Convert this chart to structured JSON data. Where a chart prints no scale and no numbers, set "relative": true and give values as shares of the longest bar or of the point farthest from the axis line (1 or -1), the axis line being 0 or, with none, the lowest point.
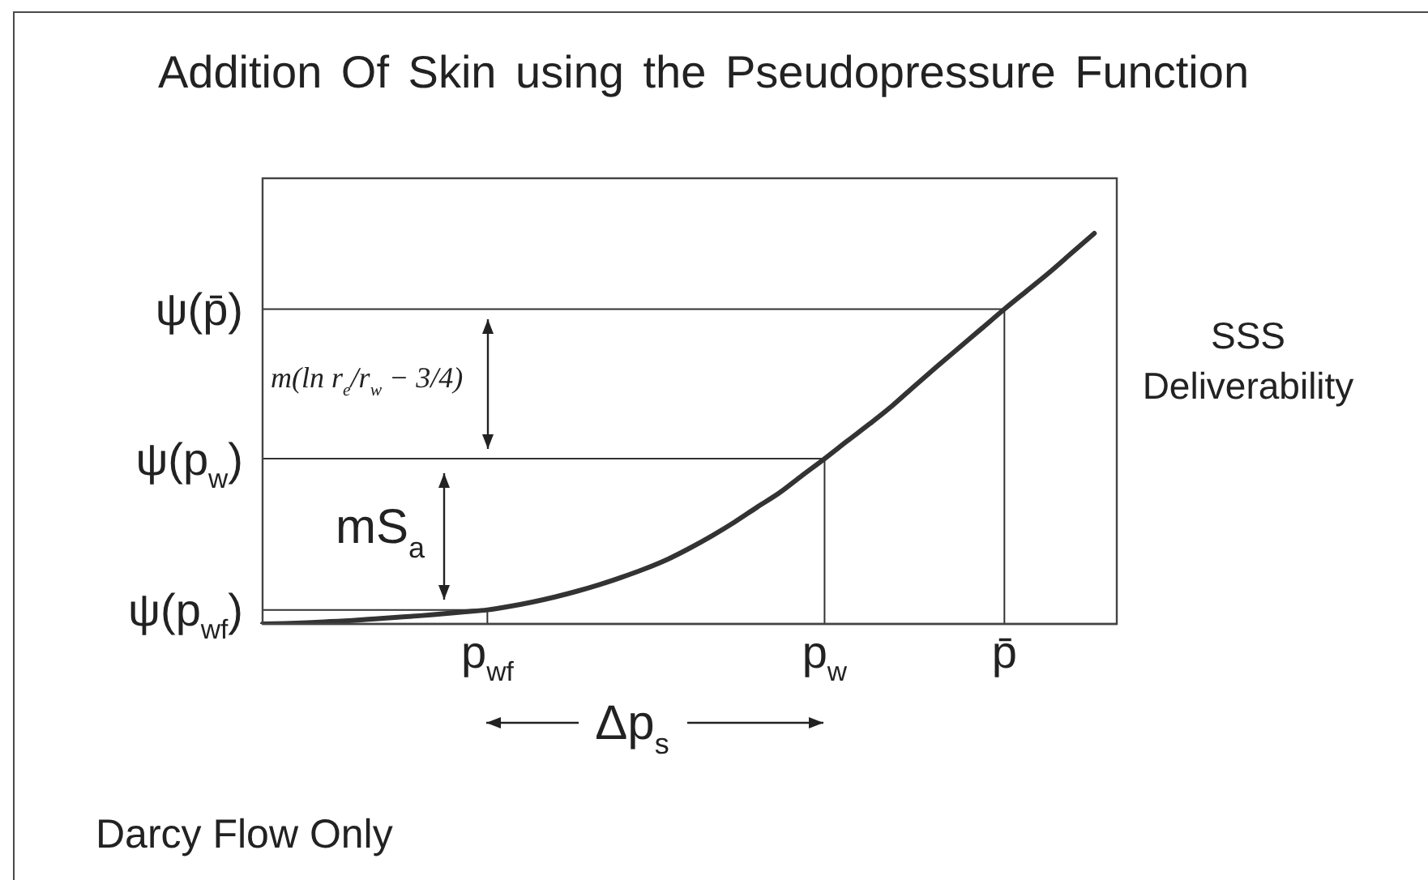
{
  "chart_data": {
    "type": "line",
    "title": "Addition Of Skin using the Pseudopressure Function",
    "relative": true,
    "marker": "none",
    "categories": [
      null,
      null,
      null,
      null,
      null,
      null,
      null,
      null,
      null,
      null,
      "p$_{wf}$",
      null,
      null,
      null,
      null,
      null,
      null,
      null,
      null,
      null,
      null,
      null,
      null,
      null,
      null,
      "p$_{w}$",
      null,
      null,
      null,
      null,
      null,
      null,
      null,
      "p̄",
      null,
      null,
      null,
      null,
      null
    ],
    "series": [
      {
        "color": "#333333",
        "values": [
          0,
          0.001,
          0.003,
          0.006,
          0.009,
          0.013,
          0.017,
          0.021,
          0.026,
          0.031,
          0.036,
          0.045,
          0.056,
          0.069,
          0.084,
          0.101,
          0.12,
          0.141,
          0.165,
          0.194,
          0.226,
          0.261,
          0.299,
          0.336,
          0.38,
          0.423,
          0.468,
          0.512,
          0.558,
          0.609,
          0.659,
          0.708,
          0.757,
          0.806,
          0.853,
          0.9,
          0.95,
          1,
          null
        ]
      }
    ],
    "ref_lines": [
      {
        "axis": "y",
        "value": 0.806,
        "label": "ψ(p̄)"
      },
      {
        "axis": "y",
        "value": 0.423,
        "label": "ψ(p$_{w}$)"
      },
      {
        "axis": "y",
        "value": 0.036,
        "label": "ψ(p$_{wf}$)"
      },
      {
        "axis": "x",
        "value": "p$_{wf}$"
      },
      {
        "axis": "x",
        "value": "p$_{w}$"
      },
      {
        "axis": "x",
        "value": "p̄"
      }
    ],
    "annotations": [
      "m(ln r$_{e}$/r$_{w}$ − 3/4)",
      "mS$_{a}$",
      "Δp$_{s}$",
      "SSS\nDeliverability",
      "Darcy Flow Only"
    ]
  }
}
